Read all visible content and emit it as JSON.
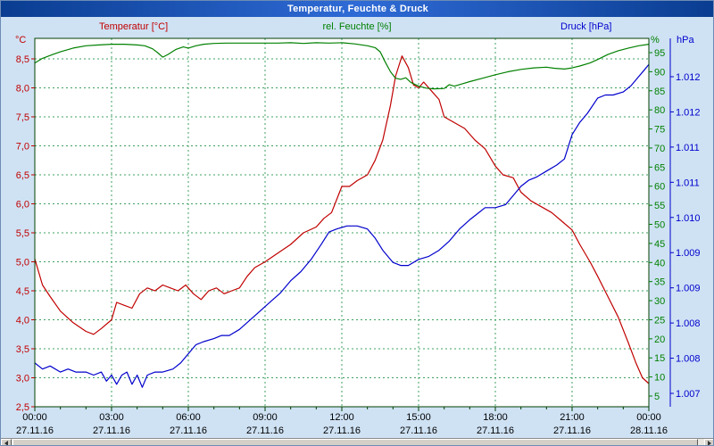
{
  "window": {
    "title": "Temperatur, Feuchte & Druck"
  },
  "legend": {
    "temperature": "Temperatur [°C]",
    "humidity": "rel. Feuchte [%]",
    "pressure": "Druck [hPa]"
  },
  "colors": {
    "temperature": "#c00000",
    "humidity": "#008000",
    "pressure": "#0000cc",
    "grid": "#3fa060",
    "plot_border": "#004000",
    "x_text": "#000000",
    "background": "#cfe2f4",
    "plot_background": "#ffffff",
    "titlebar_text": "#ffffff"
  },
  "axes": {
    "temperature": {
      "unit": "°C",
      "min": 2.5,
      "max": 8.5,
      "tick_labels": [
        "8,5",
        "8,0",
        "7,5",
        "7,0",
        "6,5",
        "6,0",
        "5,5",
        "5,0",
        "4,5",
        "4,0",
        "3,5",
        "3,0",
        "2,5"
      ]
    },
    "humidity": {
      "unit": "%",
      "min": 5,
      "max": 95,
      "tick_labels": [
        "95",
        "90",
        "85",
        "80",
        "75",
        "70",
        "65",
        "60",
        "55",
        "50",
        "45",
        "40",
        "35",
        "30",
        "25",
        "20",
        "15",
        "10",
        "5"
      ]
    },
    "pressure": {
      "unit": "hPa",
      "tick_labels": [
        "1.012",
        "1.012",
        "1.011",
        "1.011",
        "1.010",
        "1.009",
        "1.009",
        "1.008",
        "1.008",
        "1.007"
      ]
    },
    "x": {
      "time_labels": [
        "00:00",
        "03:00",
        "06:00",
        "09:00",
        "12:00",
        "15:00",
        "18:00",
        "21:00",
        "00:00"
      ],
      "date_labels": [
        "27.11.16",
        "27.11.16",
        "27.11.16",
        "27.11.16",
        "27.11.16",
        "27.11.16",
        "27.11.16",
        "27.11.16",
        "28.11.16"
      ]
    }
  },
  "chart_data": {
    "type": "line",
    "title": "Temperatur, Feuchte & Druck",
    "x_unit": "hours",
    "x_range": [
      0,
      24
    ],
    "x_tick_hours": [
      0,
      3,
      6,
      9,
      12,
      15,
      18,
      21,
      24
    ],
    "grid": true,
    "legend_position": "top",
    "y_axes": {
      "temperature": {
        "min": 2.5,
        "max": 8.5,
        "unit": "°C"
      },
      "humidity": {
        "min": 5,
        "max": 95,
        "unit": "%"
      },
      "pressure": {
        "min": 1007,
        "max": 1012.5,
        "unit": "hPa"
      }
    },
    "series": [
      {
        "name": "Temperatur [°C]",
        "axis": "temperature",
        "color": "#c00000",
        "x": [
          0,
          0.3,
          0.6,
          1,
          1.5,
          2,
          2.3,
          2.6,
          3,
          3.2,
          3.5,
          3.8,
          4.1,
          4.4,
          4.7,
          5,
          5.3,
          5.6,
          5.9,
          6.2,
          6.5,
          6.8,
          7.1,
          7.4,
          7.7,
          8,
          8.3,
          8.6,
          9,
          9.5,
          10,
          10.5,
          11,
          11.3,
          11.6,
          12,
          12.3,
          12.6,
          13,
          13.3,
          13.6,
          13.9,
          14.1,
          14.35,
          14.6,
          14.8,
          15,
          15.2,
          15.5,
          15.8,
          16,
          16.4,
          16.8,
          17.2,
          17.6,
          18,
          18.3,
          18.7,
          19,
          19.4,
          19.8,
          20.2,
          20.6,
          21,
          21.3,
          21.7,
          22,
          22.4,
          22.8,
          23.2,
          23.5,
          23.75,
          24
        ],
        "y": [
          5.05,
          4.6,
          4.4,
          4.15,
          3.95,
          3.8,
          3.75,
          3.85,
          4.0,
          4.3,
          4.25,
          4.2,
          4.45,
          4.55,
          4.5,
          4.6,
          4.55,
          4.5,
          4.6,
          4.45,
          4.35,
          4.5,
          4.55,
          4.45,
          4.5,
          4.55,
          4.75,
          4.9,
          5.0,
          5.15,
          5.3,
          5.5,
          5.6,
          5.75,
          5.85,
          6.3,
          6.3,
          6.4,
          6.5,
          6.75,
          7.1,
          7.7,
          8.2,
          8.55,
          8.35,
          8.05,
          8.0,
          8.1,
          7.95,
          7.8,
          7.5,
          7.4,
          7.3,
          7.1,
          6.95,
          6.65,
          6.5,
          6.45,
          6.2,
          6.05,
          5.95,
          5.85,
          5.7,
          5.55,
          5.3,
          5.0,
          4.75,
          4.4,
          4.05,
          3.6,
          3.25,
          3.0,
          2.9
        ]
      },
      {
        "name": "rel. Feuchte [%]",
        "axis": "humidity",
        "color": "#008000",
        "x": [
          0,
          0.3,
          0.7,
          1,
          1.5,
          2,
          2.5,
          3,
          3.5,
          4,
          4.3,
          4.6,
          4.8,
          5,
          5.2,
          5.5,
          5.8,
          6,
          6.3,
          6.6,
          7,
          7.5,
          8,
          8.5,
          9,
          9.5,
          10,
          10.5,
          11,
          11.5,
          12,
          12.5,
          13,
          13.3,
          13.5,
          13.7,
          13.9,
          14.1,
          14.3,
          14.5,
          14.7,
          15,
          15.3,
          15.6,
          16,
          16.2,
          16.4,
          16.7,
          17,
          17.5,
          18,
          18.5,
          19,
          19.5,
          20,
          20.3,
          20.7,
          21,
          21.3,
          21.7,
          22,
          22.4,
          22.8,
          23.2,
          23.6,
          24
        ],
        "y": [
          92.3,
          93.5,
          94.5,
          95.2,
          96.2,
          96.8,
          97,
          97.2,
          97.2,
          97,
          96.8,
          96,
          95,
          93.8,
          94.5,
          95.8,
          96.5,
          96.2,
          96.8,
          97.2,
          97.4,
          97.5,
          97.5,
          97.5,
          97.5,
          97.5,
          97.6,
          97.4,
          97.6,
          97.5,
          97.6,
          97.3,
          96.8,
          96.3,
          95.2,
          92.5,
          90,
          88.3,
          88,
          88.4,
          87.2,
          86.2,
          85.7,
          85.5,
          85.6,
          86.6,
          86.2,
          86.8,
          87.4,
          88.3,
          89.2,
          90,
          90.6,
          91,
          91.2,
          90.9,
          90.7,
          91,
          91.5,
          92.3,
          93.2,
          94.5,
          95.5,
          96.2,
          96.8,
          97.2
        ]
      },
      {
        "name": "Druck [hPa]",
        "axis": "pressure",
        "color": "#0000cc",
        "x": [
          0,
          0.3,
          0.6,
          1,
          1.3,
          1.6,
          2,
          2.3,
          2.6,
          2.8,
          3,
          3.2,
          3.4,
          3.6,
          3.8,
          4,
          4.2,
          4.4,
          4.7,
          5,
          5.4,
          5.7,
          6,
          6.3,
          6.6,
          7,
          7.3,
          7.6,
          8,
          8.4,
          8.8,
          9.2,
          9.6,
          10,
          10.4,
          10.8,
          11.2,
          11.5,
          11.8,
          12.2,
          12.6,
          13,
          13.3,
          13.6,
          14,
          14.3,
          14.6,
          15,
          15.4,
          15.8,
          16.2,
          16.6,
          17,
          17.3,
          17.6,
          18,
          18.4,
          18.7,
          19,
          19.3,
          19.6,
          20,
          20.4,
          20.7,
          21,
          21.3,
          21.6,
          22,
          22.3,
          22.6,
          23,
          23.3,
          23.6,
          23.8,
          24
        ],
        "y": [
          1007.65,
          1007.55,
          1007.6,
          1007.5,
          1007.55,
          1007.5,
          1007.5,
          1007.45,
          1007.5,
          1007.35,
          1007.45,
          1007.3,
          1007.45,
          1007.5,
          1007.3,
          1007.45,
          1007.25,
          1007.45,
          1007.5,
          1007.5,
          1007.55,
          1007.65,
          1007.8,
          1007.95,
          1008.0,
          1008.05,
          1008.1,
          1008.1,
          1008.2,
          1008.35,
          1008.5,
          1008.65,
          1008.8,
          1009.0,
          1009.15,
          1009.35,
          1009.6,
          1009.8,
          1009.85,
          1009.9,
          1009.9,
          1009.85,
          1009.7,
          1009.5,
          1009.3,
          1009.25,
          1009.25,
          1009.35,
          1009.4,
          1009.5,
          1009.65,
          1009.85,
          1010.0,
          1010.1,
          1010.2,
          1010.2,
          1010.25,
          1010.4,
          1010.55,
          1010.65,
          1010.7,
          1010.8,
          1010.9,
          1011.0,
          1011.4,
          1011.6,
          1011.75,
          1012.0,
          1012.05,
          1012.05,
          1012.1,
          1012.2,
          1012.35,
          1012.45,
          1012.55
        ]
      }
    ]
  }
}
